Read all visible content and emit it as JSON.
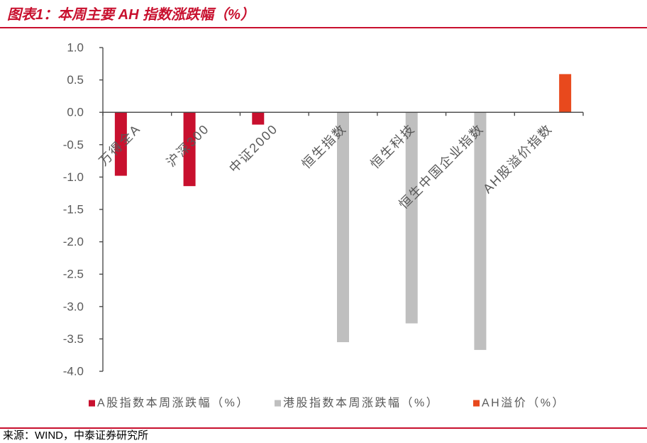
{
  "header": {
    "title": "图表1：本周主要 AH 指数涨跌幅（%）"
  },
  "footer": {
    "source": "来源：WIND，中泰证券研究所"
  },
  "colors": {
    "accent": "#C8102E"
  },
  "chart_data": {
    "type": "bar",
    "categories": [
      "万得全A",
      "沪深300",
      "中证2000",
      "恒生指数",
      "恒生科技",
      "恒生中国企业指数",
      "AH股溢价指数"
    ],
    "series": [
      {
        "name": "A股指数本周涨跌幅（%）",
        "color": "#C8102E",
        "values": [
          -0.98,
          -1.14,
          -0.19,
          null,
          null,
          null,
          null
        ]
      },
      {
        "name": "港股指数本周涨跌幅（%）",
        "color": "#BFBFBF",
        "values": [
          null,
          null,
          null,
          -3.55,
          -3.26,
          -3.67,
          null
        ]
      },
      {
        "name": "AH溢价（%）",
        "color": "#E8491D",
        "values": [
          null,
          null,
          null,
          null,
          null,
          null,
          0.59
        ]
      }
    ],
    "ylim": [
      -4,
      1
    ],
    "yticks": [
      "1.0",
      "0.5",
      "0.0",
      "-0.5",
      "-1.0",
      "-1.5",
      "-2.0",
      "-2.5",
      "-3.0",
      "-3.5",
      "-4.0"
    ],
    "grid": false,
    "legend": "bottom"
  }
}
